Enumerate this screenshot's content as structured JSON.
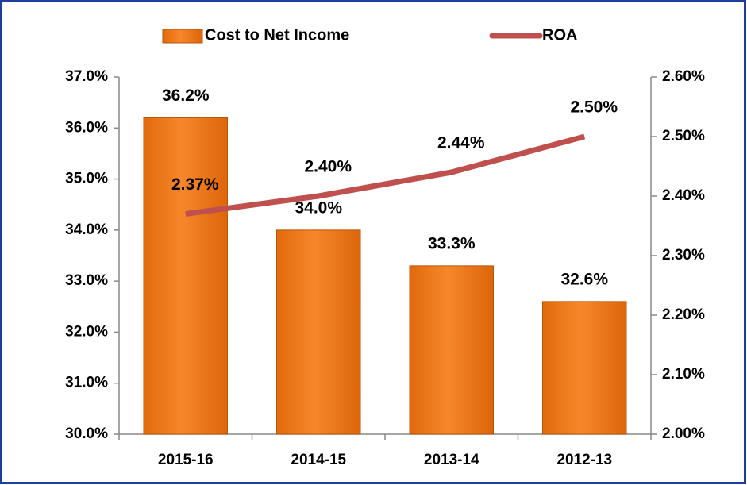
{
  "chart_data": {
    "type": "combo",
    "categories": [
      "2015-16",
      "2014-15",
      "2013-14",
      "2012-13"
    ],
    "series": [
      {
        "name": "Cost to Net Income",
        "type": "bar",
        "axis": "y",
        "color": "#f07818",
        "values": [
          36.2,
          34.0,
          33.3,
          32.6
        ],
        "value_labels": [
          "36.2%",
          "34.0%",
          "33.3%",
          "32.6%"
        ]
      },
      {
        "name": "ROA",
        "type": "line",
        "axis": "y2",
        "color": "#c0504d",
        "values": [
          2.37,
          2.4,
          2.44,
          2.5
        ],
        "value_labels": [
          "2.37%",
          "2.40%",
          "2.44%",
          "2.50%"
        ]
      }
    ],
    "ylim": [
      30,
      37
    ],
    "yticks": [
      {
        "value": 30,
        "label": "30.0%"
      },
      {
        "value": 31,
        "label": "31.0%"
      },
      {
        "value": 32,
        "label": "32.0%"
      },
      {
        "value": 33,
        "label": "33.0%"
      },
      {
        "value": 34,
        "label": "34.0%"
      },
      {
        "value": 35,
        "label": "35.0%"
      },
      {
        "value": 36,
        "label": "36.0%"
      },
      {
        "value": 37,
        "label": "37.0%"
      }
    ],
    "y2lim": [
      2.0,
      2.6
    ],
    "y2ticks": [
      {
        "value": 2.0,
        "label": "2.00%"
      },
      {
        "value": 2.1,
        "label": "2.10%"
      },
      {
        "value": 2.2,
        "label": "2.20%"
      },
      {
        "value": 2.3,
        "label": "2.30%"
      },
      {
        "value": 2.4,
        "label": "2.40%"
      },
      {
        "value": 2.5,
        "label": "2.50%"
      },
      {
        "value": 2.6,
        "label": "2.60%"
      }
    ],
    "legend": "top",
    "grid": false
  }
}
